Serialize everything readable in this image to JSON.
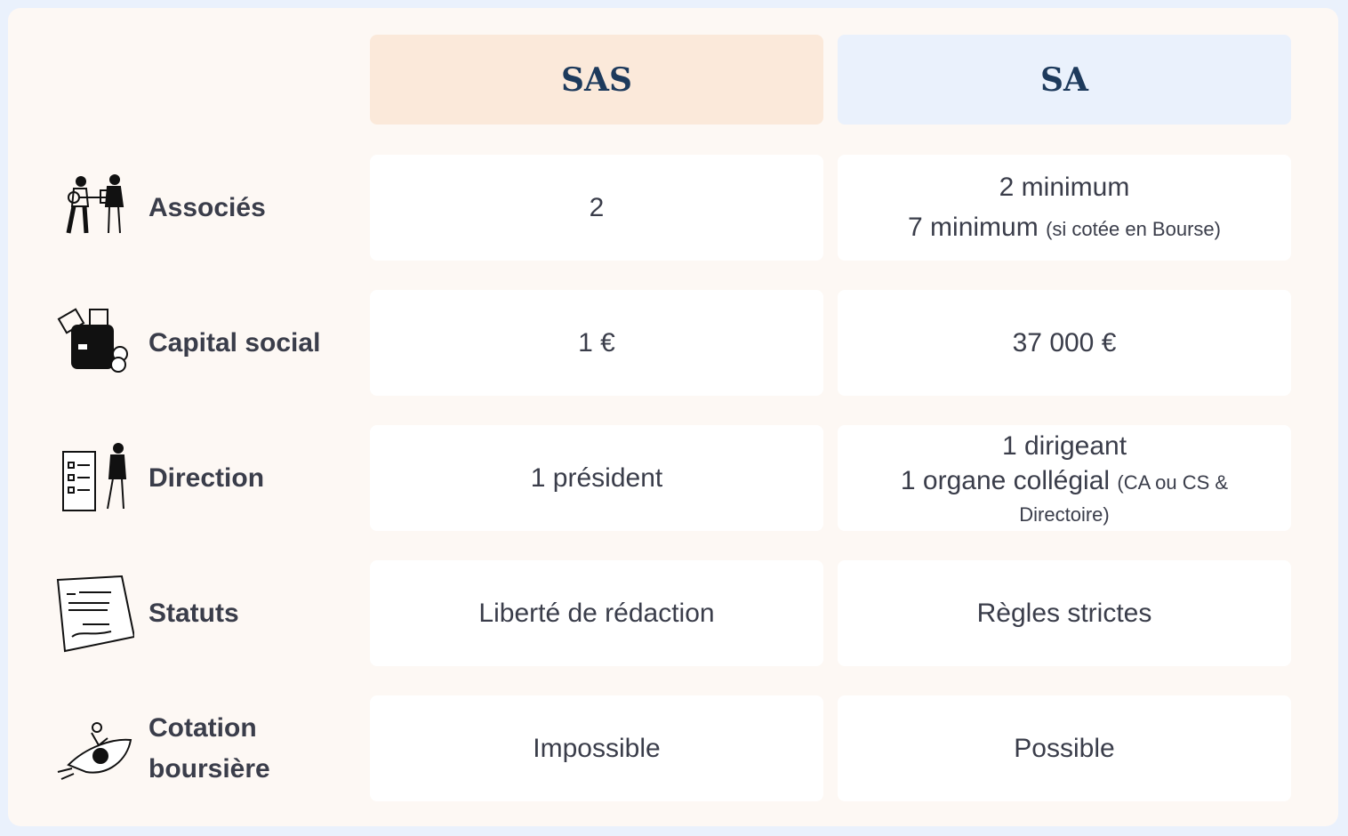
{
  "columns": {
    "sas": "SAS",
    "sa": "SA"
  },
  "colors": {
    "sas_header": "#fbe9da",
    "sa_header": "#eaf1fc",
    "title_text": "#1d3a5c",
    "background": "#fdf8f4",
    "frame": "#eaf1fc"
  },
  "rows": [
    {
      "label": "Associés",
      "icon": "partners-key-icon",
      "sas": "2",
      "sa_line1": "2 minimum",
      "sa_line2": "7 minimum",
      "sa_note": "(si cotée en Bourse)"
    },
    {
      "label": "Capital social",
      "icon": "wallet-money-icon",
      "sas": "1 €",
      "sa_line1": "37 000 €"
    },
    {
      "label": "Direction",
      "icon": "checklist-manager-icon",
      "sas": "1 président",
      "sa_line1": "1 dirigeant",
      "sa_line2": "1 organe collégial",
      "sa_note": "(CA ou CS & Directoire)"
    },
    {
      "label": "Statuts",
      "icon": "signed-document-icon",
      "sas": "Liberté de rédaction",
      "sa_line1": "Règles strictes"
    },
    {
      "label": "Cotation boursière",
      "icon": "rocket-launch-icon",
      "sas": "Impossible",
      "sa_line1": "Possible"
    }
  ]
}
